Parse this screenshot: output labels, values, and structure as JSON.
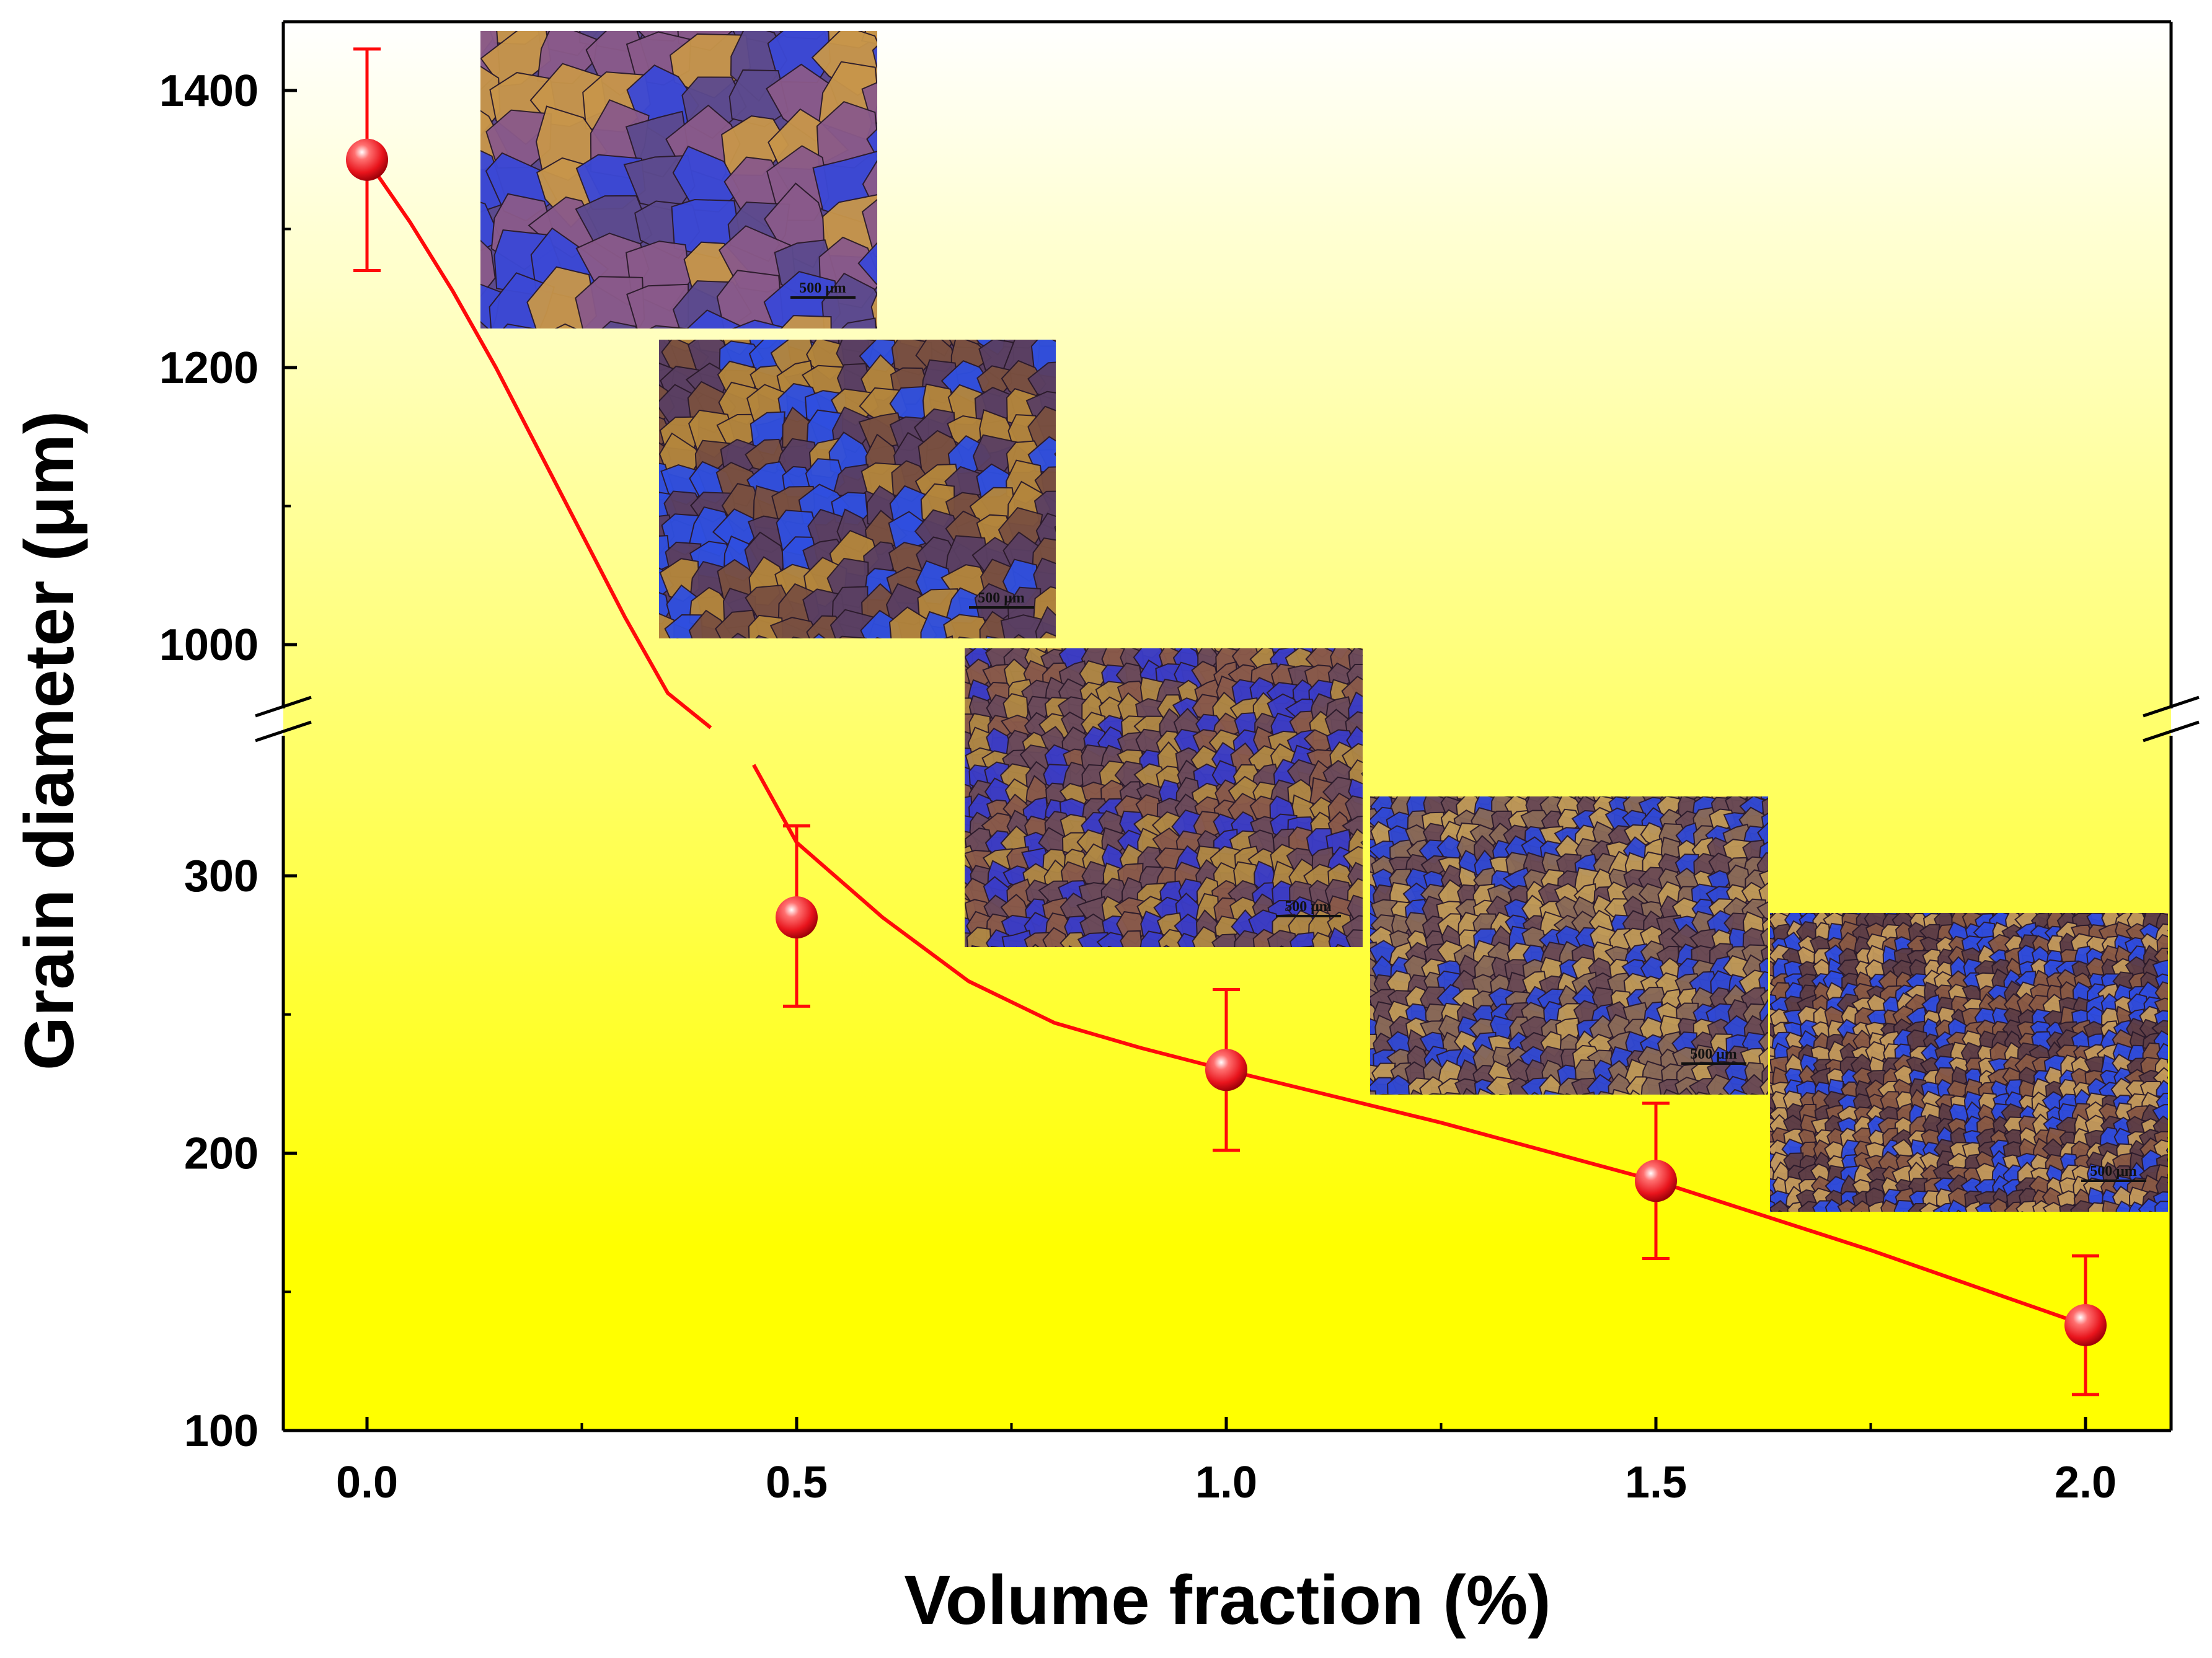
{
  "chart_data": {
    "type": "scatter",
    "title": "",
    "xlabel": "Volume fraction (%)",
    "ylabel": "Grain diameter (μm)",
    "xlim": [
      -0.1,
      2.1
    ],
    "x_ticks": [
      "0.0",
      "0.5",
      "1.0",
      "1.5",
      "2.0"
    ],
    "y_axis_break": {
      "lower_range": [
        100,
        350
      ],
      "upper_range": [
        950,
        1450
      ],
      "lower_ticks": [
        "100",
        "200",
        "300"
      ],
      "upper_ticks": [
        "1000",
        "1200",
        "1400"
      ]
    },
    "series": [
      {
        "name": "Grain diameter",
        "x": [
          0.0,
          0.5,
          1.0,
          1.5,
          2.0
        ],
        "y": [
          1350,
          285,
          230,
          190,
          138
        ],
        "error_low": [
          1270,
          253,
          201,
          162,
          113
        ],
        "error_high": [
          1430,
          318,
          259,
          218,
          163
        ],
        "marker_color": "#e8141c",
        "line_color": "#ff0a0a"
      }
    ],
    "fit_curve": {
      "x": [
        0.0,
        0.05,
        0.1,
        0.15,
        0.2,
        0.25,
        0.3,
        0.35,
        0.4,
        0.45,
        0.5,
        0.6,
        0.7,
        0.8,
        0.9,
        1.0,
        1.25,
        1.5,
        1.75,
        2.0
      ],
      "y": [
        1350,
        1305,
        1255,
        1200,
        1140,
        1080,
        1020,
        965,
        940,
        340,
        312,
        285,
        262,
        247,
        238,
        230,
        211,
        190,
        165,
        138
      ]
    },
    "inset_micrographs": [
      {
        "name": "micrograph-0.0",
        "scale_bar": "500 μm",
        "palette": [
          "#5c4a8e",
          "#3b48d6",
          "#8a5a8a",
          "#c8964a"
        ]
      },
      {
        "name": "micrograph-0.5",
        "scale_bar": "500 μm",
        "palette": [
          "#5a3f62",
          "#2f4fe0",
          "#b4863c",
          "#7a5040"
        ]
      },
      {
        "name": "micrograph-1.0",
        "scale_bar": "500 μm",
        "palette": [
          "#6b4a5a",
          "#3a3cc8",
          "#b08844",
          "#8a5a4a"
        ]
      },
      {
        "name": "micrograph-1.5",
        "scale_bar": "500 μm",
        "palette": [
          "#6a4a54",
          "#3048d4",
          "#c09a58",
          "#8a6a58"
        ]
      },
      {
        "name": "micrograph-2.0",
        "scale_bar": "500 μm",
        "palette": [
          "#5e3e46",
          "#2e4ce0",
          "#c49a5c",
          "#8a5a44"
        ]
      }
    ],
    "background_gradient": [
      "#ffffff",
      "#ffff00"
    ],
    "grid": false,
    "legend": "none"
  }
}
